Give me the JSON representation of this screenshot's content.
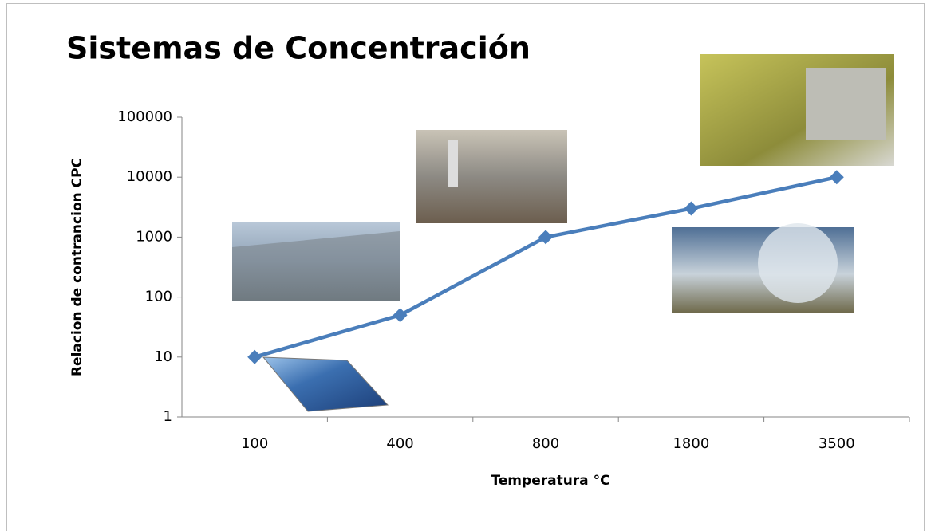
{
  "chart_data": {
    "type": "line",
    "title": "Sistemas de Concentración",
    "x_label": "Temperatura °C",
    "y_label": "Relacion de contrancion CPC",
    "categories": [
      "100",
      "400",
      "800",
      "1800",
      "3500"
    ],
    "series": [
      {
        "name": "Relacion de contrancion CPC",
        "color": "#4a7ebb",
        "values": [
          10,
          50,
          1000,
          3000,
          10000
        ]
      }
    ],
    "y_scale": "log",
    "ylim": [
      1,
      100000
    ],
    "yticks": [
      1,
      10,
      100,
      1000,
      10000,
      100000
    ],
    "grid": false
  }
}
